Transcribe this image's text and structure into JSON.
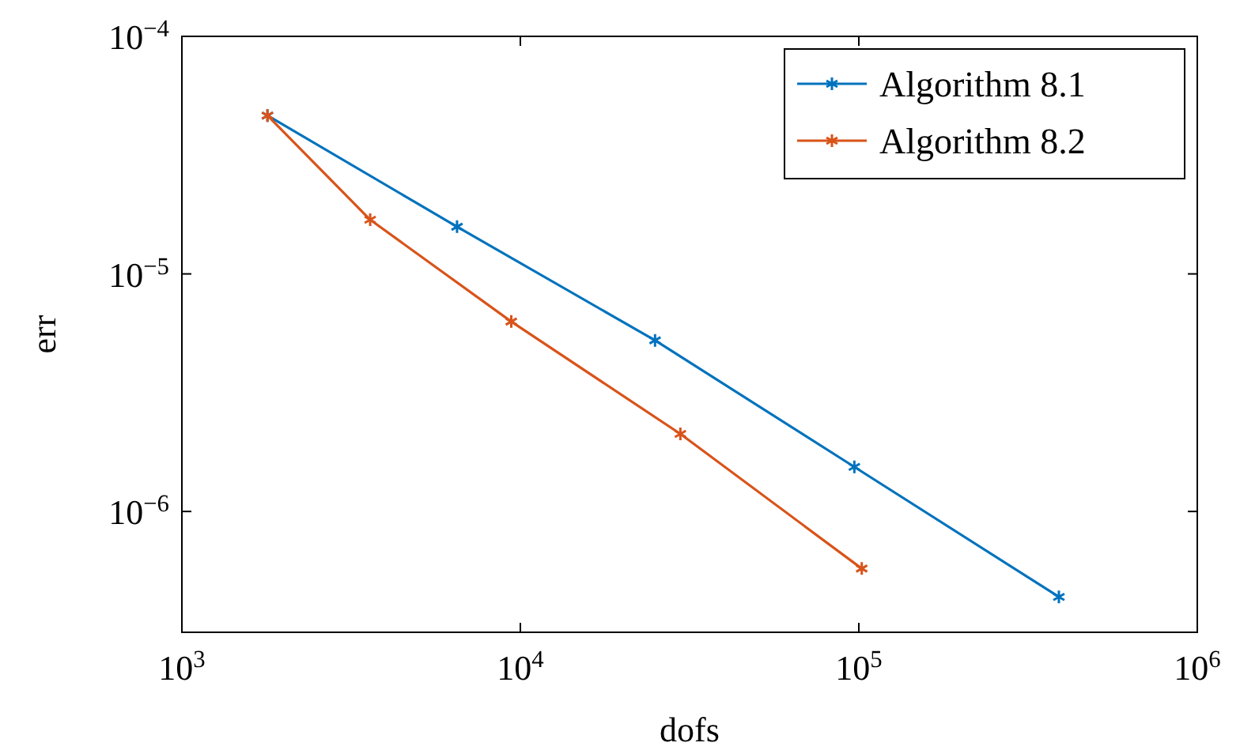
{
  "chart_data": {
    "type": "line",
    "xlabel": "dofs",
    "ylabel": "err",
    "log": "xy",
    "grid": false,
    "legend": "top right",
    "marker": "cross",
    "line_style": "solid",
    "xlim": [
      1000,
      1000000
    ],
    "ylim": [
      3.1e-07,
      0.0001
    ],
    "xticks": [
      {
        "value": 1000,
        "label": "10$^{3}$"
      },
      {
        "value": 10000,
        "label": "10$^{4}$"
      },
      {
        "value": 100000,
        "label": "10$^{5}$"
      },
      {
        "value": 1000000,
        "label": "10$^{6}$"
      }
    ],
    "yticks": [
      {
        "value": 1e-06,
        "label": "10$^{−6}$"
      },
      {
        "value": 1e-05,
        "label": "10$^{−5}$"
      },
      {
        "value": 0.0001,
        "label": "10$^{−4}$"
      }
    ],
    "series": [
      {
        "name": "Algorithm 8.1",
        "color": "#0072bd",
        "x": [
          1790,
          6500,
          25000,
          97000,
          390000
        ],
        "values": [
          4.64e-05,
          1.58e-05,
          5.25e-06,
          1.54e-06,
          4.37e-07
        ]
      },
      {
        "name": "Algorithm 8.2",
        "color": "#d95319",
        "x": [
          1790,
          3600,
          9400,
          29700,
          102000
        ],
        "values": [
          4.64e-05,
          1.69e-05,
          6.3e-06,
          2.12e-06,
          5.75e-07
        ]
      }
    ]
  }
}
